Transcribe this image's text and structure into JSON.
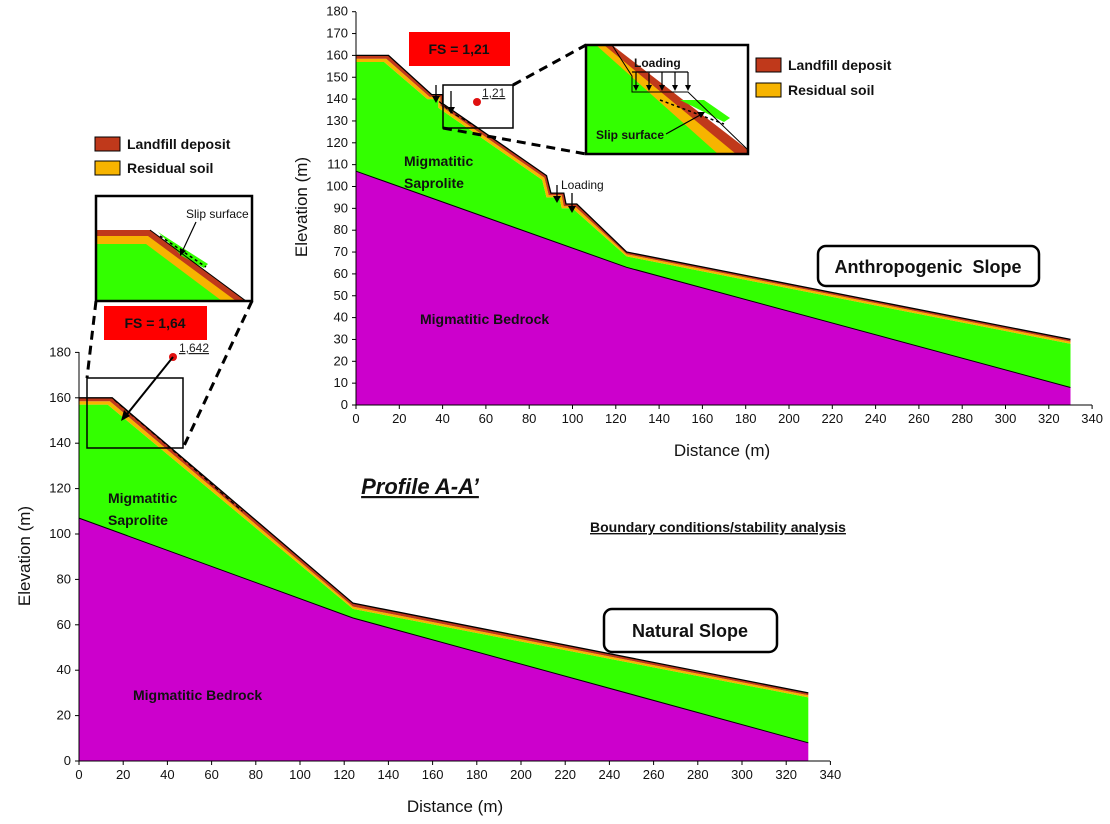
{
  "colors": {
    "landfill": "#c0391b",
    "residual": "#f7b400",
    "saprolite": "#33ff00",
    "bedrock": "#cc00cc",
    "fs_box": "#ff0000",
    "line": "#000000"
  },
  "natural": {
    "name": "Natural Slope",
    "fs_label": "FS = 1,64",
    "fs_value": "1,642",
    "xlabel": "Distance (m)",
    "ylabel": "Elevation (m)",
    "xticks": [
      "0",
      "20",
      "40",
      "60",
      "80",
      "100",
      "120",
      "140",
      "160",
      "180",
      "200",
      "220",
      "240",
      "260",
      "280",
      "300",
      "320",
      "340"
    ],
    "yticks": [
      "0",
      "20",
      "40",
      "60",
      "80",
      "100",
      "120",
      "140",
      "160",
      "180"
    ],
    "xlim": [
      0,
      340
    ],
    "ylim": [
      0,
      180
    ],
    "saprolite_label": [
      "Migmatitic",
      "Saprolite"
    ],
    "bedrock_label": "Migmatitic Bedrock",
    "inset_slip_label": "Slip surface",
    "legend": {
      "landfill": "Landfill deposit",
      "residual": "Residual soil"
    }
  },
  "anthropogenic": {
    "name": "Anthropogenic  Slope",
    "fs_label": "FS = 1,21",
    "fs_value": "1,21",
    "xlabel": "Distance (m)",
    "ylabel": "Elevation (m)",
    "xticks": [
      "0",
      "20",
      "40",
      "60",
      "80",
      "100",
      "120",
      "140",
      "160",
      "180",
      "200",
      "220",
      "240",
      "260",
      "280",
      "300",
      "320",
      "340"
    ],
    "yticks": [
      "0",
      "10",
      "20",
      "30",
      "40",
      "50",
      "60",
      "70",
      "80",
      "90",
      "100",
      "110",
      "120",
      "130",
      "140",
      "150",
      "160",
      "170",
      "180"
    ],
    "xlim": [
      0,
      340
    ],
    "ylim": [
      0,
      180
    ],
    "saprolite_label": [
      "Migmatitic",
      "Saprolite"
    ],
    "bedrock_label": "Migmatitic Bedrock",
    "loading_label": "Loading",
    "inset_loading_label": "Loading",
    "inset_slip_label": "Slip surface",
    "legend": {
      "landfill": "Landfill deposit",
      "residual": "Residual soil"
    }
  },
  "profile_title": "Profile A-A’",
  "subtitle": "Boundary conditions/stability analysis"
}
